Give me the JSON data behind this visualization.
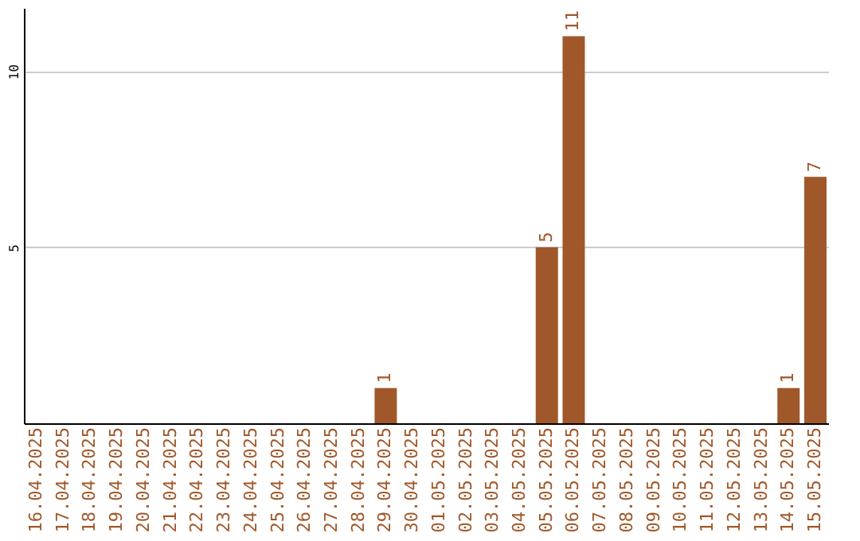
{
  "chart_data": {
    "type": "bar",
    "categories": [
      "16.04.2025",
      "17.04.2025",
      "18.04.2025",
      "19.04.2025",
      "20.04.2025",
      "21.04.2025",
      "22.04.2025",
      "23.04.2025",
      "24.04.2025",
      "25.04.2025",
      "26.04.2025",
      "27.04.2025",
      "28.04.2025",
      "29.04.2025",
      "30.04.2025",
      "01.05.2025",
      "02.05.2025",
      "03.05.2025",
      "04.05.2025",
      "05.05.2025",
      "06.05.2025",
      "07.05.2025",
      "08.05.2025",
      "09.05.2025",
      "10.05.2025",
      "11.05.2025",
      "12.05.2025",
      "13.05.2025",
      "14.05.2025",
      "15.05.2025"
    ],
    "values": [
      0,
      0,
      0,
      0,
      0,
      0,
      0,
      0,
      0,
      0,
      0,
      0,
      0,
      1,
      0,
      0,
      0,
      0,
      0,
      5,
      11,
      0,
      0,
      0,
      0,
      0,
      0,
      0,
      1,
      7
    ],
    "value_labels": [
      null,
      null,
      null,
      null,
      null,
      null,
      null,
      null,
      null,
      null,
      null,
      null,
      null,
      "1",
      null,
      null,
      null,
      null,
      null,
      "5",
      "11",
      null,
      null,
      null,
      null,
      null,
      null,
      null,
      "1",
      "7"
    ],
    "color": "#a0582a",
    "ylim": [
      0,
      11.8
    ],
    "yticks": [
      5,
      10
    ],
    "grid": "y"
  }
}
